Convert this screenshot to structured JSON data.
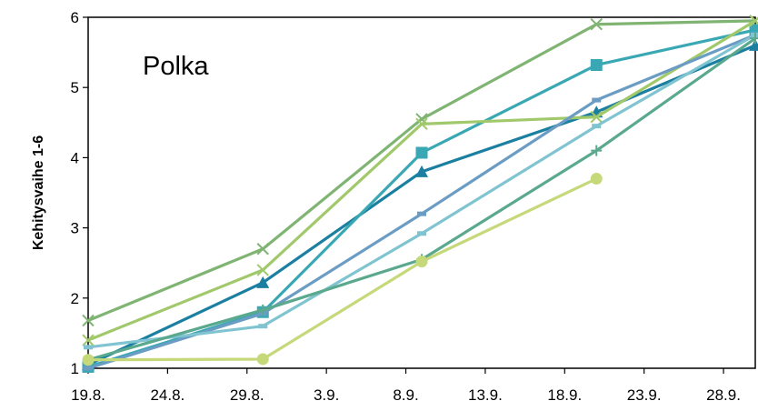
{
  "chart_data": {
    "type": "line",
    "title": "Polka",
    "xlabel": "",
    "ylabel": "Kehitysvaihe 1-6",
    "xlim": [
      "2014-08-19",
      "2014-09-30"
    ],
    "ylim": [
      1,
      6
    ],
    "x_ticks": [
      "19.8.",
      "24.8.",
      "29.8.",
      "3.9.",
      "8.9.",
      "13.9.",
      "18.9.",
      "23.9.",
      "28.9."
    ],
    "y_ticks": [
      1,
      2,
      3,
      4,
      5,
      6
    ],
    "grid": false,
    "legend": "none",
    "series": [
      {
        "marker": "triangle",
        "color": "#1a7fa0",
        "x": [
          "2014-08-19",
          "2014-08-30",
          "2014-09-09",
          "2014-09-20",
          "2014-09-30"
        ],
        "y": [
          1.05,
          2.22,
          3.8,
          4.65,
          5.6
        ]
      },
      {
        "marker": "square",
        "color": "#3aa8b4",
        "x": [
          "2014-08-19",
          "2014-08-30",
          "2014-09-09",
          "2014-09-20",
          "2014-09-30"
        ],
        "y": [
          1.02,
          1.8,
          4.07,
          5.32,
          5.82
        ]
      },
      {
        "marker": "cross",
        "color": "#7fb472",
        "x": [
          "2014-08-19",
          "2014-08-30",
          "2014-09-09",
          "2014-09-20",
          "2014-09-30"
        ],
        "y": [
          1.68,
          2.7,
          4.55,
          5.9,
          5.95
        ]
      },
      {
        "marker": "cross",
        "color": "#a1c96b",
        "x": [
          "2014-08-19",
          "2014-08-30",
          "2014-09-09",
          "2014-09-20",
          "2014-09-30"
        ],
        "y": [
          1.4,
          2.4,
          4.48,
          4.58,
          5.95
        ]
      },
      {
        "marker": "dash",
        "color": "#6b9cc4",
        "x": [
          "2014-08-19",
          "2014-08-30",
          "2014-09-09",
          "2014-09-20",
          "2014-09-30"
        ],
        "y": [
          1.0,
          1.78,
          3.2,
          4.82,
          5.75
        ]
      },
      {
        "marker": "dash",
        "color": "#7fc4d0",
        "x": [
          "2014-08-19",
          "2014-08-30",
          "2014-09-09",
          "2014-09-20",
          "2014-09-30"
        ],
        "y": [
          1.3,
          1.6,
          2.92,
          4.45,
          5.75
        ]
      },
      {
        "marker": "plus",
        "color": "#5aa98e",
        "x": [
          "2014-08-19",
          "2014-08-30",
          "2014-09-09",
          "2014-09-20",
          "2014-09-30"
        ],
        "y": [
          1.12,
          1.83,
          2.55,
          4.1,
          5.7
        ]
      },
      {
        "marker": "circle",
        "color": "#c6d97a",
        "x": [
          "2014-08-19",
          "2014-08-30",
          "2014-09-09",
          "2014-09-20"
        ],
        "y": [
          1.12,
          1.13,
          2.52,
          3.7
        ]
      }
    ]
  }
}
